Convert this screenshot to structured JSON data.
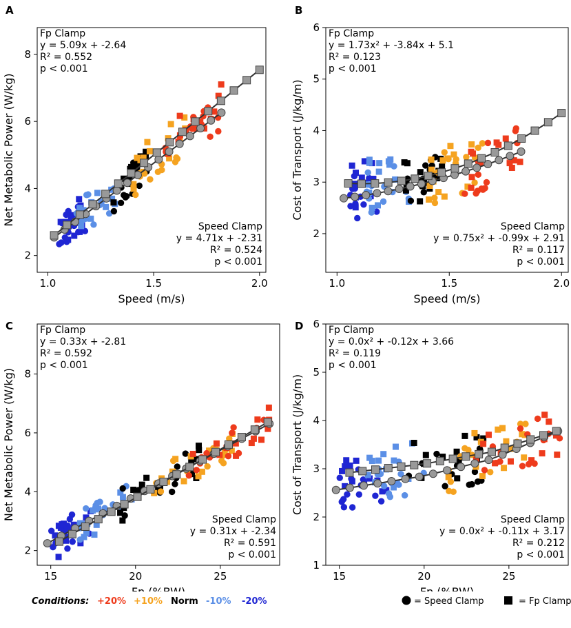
{
  "colors": {
    "p20": "#ee3b1c",
    "p10": "#f5a320",
    "norm": "#000000",
    "m10": "#5b8fe6",
    "m20": "#1f26d3",
    "fitline": "#333333",
    "marker_fill": "#999999"
  },
  "legend": {
    "conditions_label": "Conditions:",
    "items": [
      "+20%",
      "+10%",
      "Norm",
      "-10%",
      "-20%"
    ],
    "speed_clamp": "= Speed Clamp",
    "fp_clamp": "= Fp Clamp"
  },
  "chart_data": [
    {
      "panel": "A",
      "type": "scatter",
      "xlabel": "Speed (m/s)",
      "ylabel": "Net Metabolic Power (W/kg)",
      "xlim": [
        0.95,
        2.03
      ],
      "ylim": [
        1.5,
        8.8
      ],
      "xticks": [
        "1.0",
        "1.5",
        "2.0"
      ],
      "xtick_values": [
        1.0,
        1.5,
        2.0
      ],
      "yticks": [
        "2",
        "4",
        "6",
        "8"
      ],
      "ytick_values": [
        2,
        4,
        6,
        8
      ],
      "fp_annot": [
        "Fp Clamp",
        "y = 5.09x + -2.64",
        "R² = 0.552",
        "p < 0.001"
      ],
      "speed_annot": [
        "Speed Clamp",
        "y = 4.71x + -2.31",
        "R² = 0.524",
        "p < 0.001"
      ],
      "fit_fp": {
        "coef": [
          5.09,
          -2.64
        ],
        "x0": 1.03,
        "x1": 2.0
      },
      "fit_speed": {
        "coef": [
          4.71,
          -2.31
        ],
        "x0": 1.03,
        "x1": 1.82
      },
      "seed": 11,
      "sx": 0.07,
      "sy": 0.55,
      "groups": {
        "m20": [
          1.05,
          1.18
        ],
        "m10": [
          1.13,
          1.32
        ],
        "norm": [
          1.3,
          1.48
        ],
        "p10": [
          1.4,
          1.65
        ],
        "p20": [
          1.55,
          1.82
        ]
      }
    },
    {
      "panel": "B",
      "type": "scatter",
      "xlabel": "Speed (m/s)",
      "ylabel": "Cost of Transport (J/kg/m)",
      "xlim": [
        0.95,
        2.03
      ],
      "ylim": [
        1.25,
        6.0
      ],
      "xticks": [
        "1.0",
        "1.5",
        "2.0"
      ],
      "xtick_values": [
        1.0,
        1.5,
        2.0
      ],
      "yticks": [
        "2",
        "3",
        "4",
        "5",
        "6"
      ],
      "ytick_values": [
        2,
        3,
        4,
        5,
        6
      ],
      "fp_annot": [
        "Fp Clamp",
        "y = 1.73x² + -3.84x + 5.1",
        "R² = 0.123",
        "p < 0.001"
      ],
      "speed_annot": [
        "Speed Clamp",
        "y = 0.75x² + -0.99x + 2.91",
        "R² = 0.117",
        "p < 0.001"
      ],
      "fit_fp": {
        "coef": [
          1.73,
          -3.84,
          5.1
        ],
        "x0": 1.05,
        "x1": 2.0
      },
      "fit_speed": {
        "coef": [
          0.75,
          -0.99,
          2.91
        ],
        "x0": 1.03,
        "x1": 1.82
      },
      "seed": 23,
      "sx": 0.07,
      "sy": 0.5,
      "groups": {
        "m20": [
          1.05,
          1.18
        ],
        "m10": [
          1.13,
          1.32
        ],
        "norm": [
          1.3,
          1.48
        ],
        "p10": [
          1.4,
          1.65
        ],
        "p20": [
          1.55,
          1.82
        ]
      }
    },
    {
      "panel": "C",
      "type": "scatter",
      "xlabel": "Fp (%BW)",
      "ylabel": "Net Metabolic Power (W/kg)",
      "xlim": [
        14.2,
        28.5
      ],
      "ylim": [
        1.5,
        9.7
      ],
      "xticks": [
        "15",
        "20",
        "25"
      ],
      "xtick_values": [
        15,
        20,
        25
      ],
      "yticks": [
        "2",
        "4",
        "6",
        "8"
      ],
      "ytick_values": [
        2,
        4,
        6,
        8
      ],
      "fp_annot": [
        "Fp Clamp",
        "y = 0.33x + -2.81",
        "R² = 0.592",
        "p < 0.001"
      ],
      "speed_annot": [
        "Speed Clamp",
        "y = 0.31x + -2.34",
        "R² = 0.591",
        "p < 0.001"
      ],
      "fit_fp": {
        "coef": [
          0.33,
          -2.81
        ],
        "x0": 15.5,
        "x1": 27.8
      },
      "fit_speed": {
        "coef": [
          0.31,
          -2.34
        ],
        "x0": 14.8,
        "x1": 27.9
      },
      "seed": 37,
      "sx": 0.9,
      "sy": 0.55,
      "groups": {
        "m20": [
          15,
          18
        ],
        "m10": [
          16.5,
          20
        ],
        "norm": [
          19,
          24
        ],
        "p10": [
          21,
          26
        ],
        "p20": [
          23,
          28
        ]
      }
    },
    {
      "panel": "D",
      "type": "scatter",
      "xlabel": "Fp (%BW)",
      "ylabel": "Cost of Transport (J/kg/m)",
      "xlim": [
        14.2,
        28.5
      ],
      "ylim": [
        1.0,
        6.0
      ],
      "xticks": [
        "15",
        "20",
        "25"
      ],
      "xtick_values": [
        15,
        20,
        25
      ],
      "yticks": [
        "1",
        "2",
        "3",
        "4",
        "5",
        "6"
      ],
      "ytick_values": [
        1,
        2,
        3,
        4,
        5,
        6
      ],
      "fp_annot": [
        "Fp Clamp",
        "y = 0.0x² + -0.12x + 3.66",
        "R² = 0.119",
        "p < 0.001"
      ],
      "speed_annot": [
        "Speed Clamp",
        "y = 0.0x² + -0.11x + 3.17",
        "R² = 0.212",
        "p < 0.001"
      ],
      "fit_fp": {
        "pts": [
          [
            15.6,
            2.92
          ],
          [
            20,
            3.1
          ],
          [
            24,
            3.35
          ],
          [
            27.8,
            3.78
          ]
        ]
      },
      "fit_speed": {
        "pts": [
          [
            14.8,
            2.56
          ],
          [
            20,
            2.85
          ],
          [
            24,
            3.2
          ],
          [
            27.9,
            3.78
          ]
        ]
      },
      "seed": 53,
      "sx": 0.9,
      "sy": 0.5,
      "groups": {
        "m20": [
          15,
          18
        ],
        "m10": [
          16.5,
          20
        ],
        "norm": [
          19,
          24
        ],
        "p10": [
          21,
          26
        ],
        "p20": [
          23,
          28
        ]
      }
    }
  ]
}
